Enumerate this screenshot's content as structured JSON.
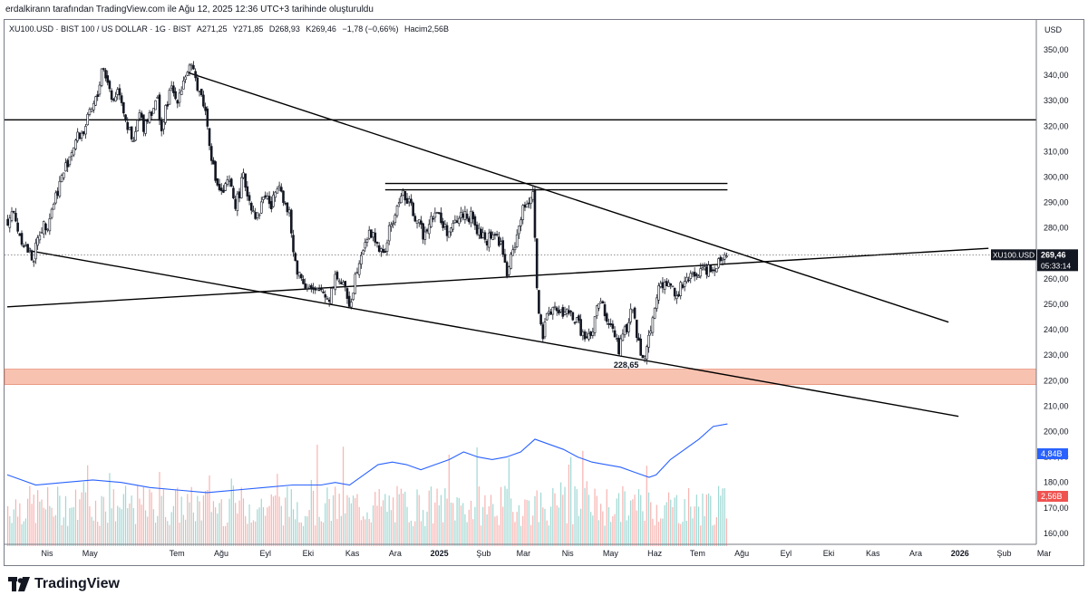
{
  "header": {
    "created_by": "erdalkirann tarafından TradingView.com ile Ağu 12, 2025 12:36 UTC+3 tarihinde oluşturuldu"
  },
  "legend": {
    "symbol": "XU100.USD · BIST 100 / US DOLLAR · 1G · BIST",
    "open": "A271,25",
    "high": "Y271,85",
    "low": "D268,93",
    "close": "K269,46",
    "change": "−1,78 (−0,66%)",
    "volume": "Hacim2,56B"
  },
  "brand": {
    "name": "TradingView"
  },
  "chart_data": {
    "type": "candlestick",
    "title": "XU100.USD · BIST 100 / US DOLLAR · 1G · BIST",
    "currency_label": "USD",
    "ylim": [
      155,
      358
    ],
    "y_ticks": [
      "350,00",
      "340,00",
      "330,00",
      "320,00",
      "310,00",
      "300,00",
      "290,00",
      "280,00",
      "270,00",
      "260,00",
      "250,00",
      "240,00",
      "230,00",
      "220,00",
      "210,00",
      "200,00",
      "190,00",
      "180,00",
      "170,00",
      "160,00"
    ],
    "y_tick_values": [
      350,
      340,
      330,
      320,
      310,
      300,
      290,
      280,
      270,
      260,
      250,
      240,
      230,
      220,
      210,
      200,
      190,
      180,
      170,
      160
    ],
    "x_ticks": [
      "Nis",
      "May",
      "Tem",
      "Ağu",
      "Eyl",
      "Eki",
      "Kas",
      "Ara",
      "2025",
      "Şub",
      "Mar",
      "Nis",
      "May",
      "Haz",
      "Tem",
      "Ağu",
      "Eyl",
      "Eki",
      "Kas",
      "Ara",
      "2026",
      "Şub",
      "Mar"
    ],
    "x_tick_days": [
      28,
      58,
      119,
      150,
      181,
      211,
      242,
      272,
      303,
      334,
      362,
      393,
      423,
      454,
      484,
      515,
      546,
      576,
      607,
      637,
      668,
      699,
      727
    ],
    "price_path": [
      [
        0,
        283
      ],
      [
        3,
        287
      ],
      [
        8,
        278
      ],
      [
        13,
        272
      ],
      [
        18,
        268
      ],
      [
        23,
        280
      ],
      [
        28,
        282
      ],
      [
        33,
        292
      ],
      [
        38,
        300
      ],
      [
        43,
        308
      ],
      [
        48,
        315
      ],
      [
        53,
        318
      ],
      [
        58,
        325
      ],
      [
        63,
        332
      ],
      [
        66,
        344
      ],
      [
        70,
        338
      ],
      [
        73,
        330
      ],
      [
        78,
        335
      ],
      [
        83,
        322
      ],
      [
        88,
        312
      ],
      [
        92,
        325
      ],
      [
        95,
        320
      ],
      [
        100,
        326
      ],
      [
        105,
        330
      ],
      [
        108,
        318
      ],
      [
        112,
        330
      ],
      [
        115,
        335
      ],
      [
        118,
        330
      ],
      [
        122,
        336
      ],
      [
        125,
        341
      ],
      [
        128,
        343
      ],
      [
        132,
        338
      ],
      [
        135,
        333
      ],
      [
        138,
        328
      ],
      [
        141,
        316
      ],
      [
        145,
        300
      ],
      [
        150,
        293
      ],
      [
        155,
        298
      ],
      [
        160,
        289
      ],
      [
        165,
        300
      ],
      [
        170,
        290
      ],
      [
        175,
        284
      ],
      [
        180,
        294
      ],
      [
        185,
        288
      ],
      [
        190,
        300
      ],
      [
        195,
        288
      ],
      [
        198,
        284
      ],
      [
        200,
        270
      ],
      [
        204,
        262
      ],
      [
        209,
        258
      ],
      [
        215,
        254
      ],
      [
        220,
        256
      ],
      [
        225,
        252
      ],
      [
        230,
        262
      ],
      [
        235,
        257
      ],
      [
        240,
        250
      ],
      [
        245,
        265
      ],
      [
        250,
        275
      ],
      [
        255,
        278
      ],
      [
        260,
        273
      ],
      [
        263,
        268
      ],
      [
        268,
        280
      ],
      [
        273,
        287
      ],
      [
        276,
        295
      ],
      [
        280,
        290
      ],
      [
        283,
        288
      ],
      [
        286,
        284
      ],
      [
        289,
        280
      ],
      [
        292,
        277
      ],
      [
        295,
        283
      ],
      [
        300,
        287
      ],
      [
        305,
        281
      ],
      [
        310,
        278
      ],
      [
        315,
        283
      ],
      [
        320,
        286
      ],
      [
        325,
        284
      ],
      [
        330,
        278
      ],
      [
        335,
        275
      ],
      [
        340,
        278
      ],
      [
        345,
        275
      ],
      [
        350,
        262
      ],
      [
        353,
        268
      ],
      [
        356,
        275
      ],
      [
        360,
        285
      ],
      [
        364,
        290
      ],
      [
        367,
        293
      ],
      [
        369,
        297
      ],
      [
        370,
        262
      ],
      [
        373,
        242
      ],
      [
        375,
        237
      ],
      [
        378,
        244
      ],
      [
        382,
        250
      ],
      [
        386,
        246
      ],
      [
        390,
        247
      ],
      [
        395,
        246
      ],
      [
        400,
        242
      ],
      [
        405,
        236
      ],
      [
        410,
        238
      ],
      [
        413,
        248
      ],
      [
        416,
        251
      ],
      [
        420,
        243
      ],
      [
        425,
        240
      ],
      [
        428,
        232
      ],
      [
        431,
        236
      ],
      [
        435,
        243
      ],
      [
        438,
        249
      ],
      [
        441,
        238
      ],
      [
        444,
        232
      ],
      [
        447,
        230
      ],
      [
        450,
        238
      ],
      [
        455,
        255
      ],
      [
        460,
        258
      ],
      [
        465,
        257
      ],
      [
        470,
        254
      ],
      [
        472,
        257
      ],
      [
        475,
        258
      ],
      [
        480,
        261
      ],
      [
        485,
        263
      ],
      [
        490,
        264
      ],
      [
        495,
        265
      ],
      [
        500,
        268
      ],
      [
        503,
        271
      ],
      [
        505,
        269.46
      ]
    ],
    "last_price": "269,46",
    "last_price_value": 269.46,
    "countdown": "05:33:14",
    "symbol_badge": "XU100.USD",
    "annotations": [
      {
        "text": "228,65",
        "price": 228.65,
        "day": 434
      }
    ],
    "horizontal_lines": [
      322.5,
      297.5,
      295.0
    ],
    "trendlines": [
      {
        "name": "descending-channel-top",
        "from": [
          127,
          341
        ],
        "to": [
          660,
          243
        ]
      },
      {
        "name": "descending-channel-bottom",
        "from": [
          16,
          271
        ],
        "to": [
          667,
          206
        ]
      },
      {
        "name": "rising-line",
        "from": [
          0,
          249
        ],
        "to": [
          688,
          272
        ]
      }
    ],
    "support_zone": [
      218.5,
      224.5
    ],
    "volume_ma_label": "4,84B",
    "volume_label": "2,56B",
    "volume_ma_path": [
      [
        0,
        183
      ],
      [
        10,
        181
      ],
      [
        20,
        179
      ],
      [
        40,
        180
      ],
      [
        60,
        181
      ],
      [
        80,
        180
      ],
      [
        100,
        178
      ],
      [
        120,
        177
      ],
      [
        140,
        176
      ],
      [
        160,
        177
      ],
      [
        180,
        178
      ],
      [
        200,
        179
      ],
      [
        220,
        179
      ],
      [
        230,
        180
      ],
      [
        240,
        179
      ],
      [
        250,
        183
      ],
      [
        260,
        187
      ],
      [
        270,
        188
      ],
      [
        280,
        187
      ],
      [
        290,
        185
      ],
      [
        300,
        187
      ],
      [
        310,
        189
      ],
      [
        320,
        192
      ],
      [
        330,
        190
      ],
      [
        340,
        189
      ],
      [
        350,
        190
      ],
      [
        360,
        192
      ],
      [
        370,
        197
      ],
      [
        380,
        195
      ],
      [
        390,
        193
      ],
      [
        400,
        190
      ],
      [
        410,
        188
      ],
      [
        420,
        187
      ],
      [
        430,
        186
      ],
      [
        440,
        184
      ],
      [
        450,
        182
      ],
      [
        455,
        183
      ],
      [
        465,
        189
      ],
      [
        475,
        193
      ],
      [
        485,
        197
      ],
      [
        495,
        202
      ],
      [
        505,
        203
      ]
    ],
    "colors": {
      "up": "#26a69a",
      "down": "#ef5350",
      "candle": "#131722",
      "ma": "#2962ff",
      "zone": "#f8c2b0",
      "vol_up": "#9fd8d3",
      "vol_down": "#f7b3b0",
      "lines": "#000000"
    }
  }
}
